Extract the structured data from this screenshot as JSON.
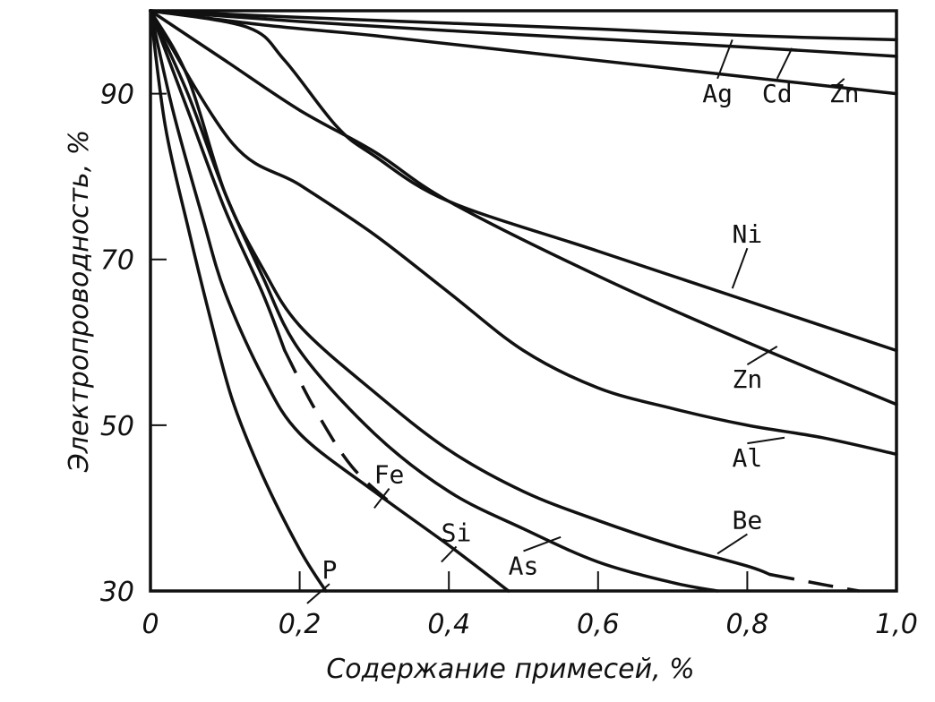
{
  "chart_data": {
    "type": "line",
    "xlabel": "Содержание примесей, %",
    "ylabel": "Электропроводность, %",
    "xlim": [
      0,
      1.0
    ],
    "ylim": [
      30,
      100
    ],
    "x_ticks": [
      0,
      0.2,
      0.4,
      0.6,
      0.8,
      1.0
    ],
    "x_tick_labels": [
      "0",
      "0,2",
      "0,4",
      "0,6",
      "0,8",
      "1,0"
    ],
    "y_ticks": [
      30,
      50,
      70,
      90
    ],
    "y_tick_labels": [
      "30",
      "50",
      "70",
      "90"
    ],
    "grid": false,
    "legend": "none",
    "series": [
      {
        "name": "Ag",
        "label_at": [
          0.76,
          89.0
        ],
        "leader_to": [
          0.78,
          96.5
        ],
        "points": [
          [
            0,
            100
          ],
          [
            0.2,
            99.2
          ],
          [
            0.4,
            98.5
          ],
          [
            0.6,
            97.8
          ],
          [
            0.8,
            97.0
          ],
          [
            1.0,
            96.5
          ]
        ]
      },
      {
        "name": "Cd",
        "label_at": [
          0.84,
          89.0
        ],
        "leader_to": [
          0.86,
          95.5
        ],
        "points": [
          [
            0,
            100
          ],
          [
            0.2,
            98.7
          ],
          [
            0.4,
            97.6
          ],
          [
            0.6,
            96.6
          ],
          [
            0.8,
            95.6
          ],
          [
            1.0,
            94.5
          ]
        ]
      },
      {
        "name": "Zn",
        "label_at": [
          0.93,
          89.0
        ],
        "leader_to": [
          0.92,
          91.0
        ],
        "points": [
          [
            0,
            100
          ],
          [
            0.15,
            98.3
          ],
          [
            0.3,
            97.0
          ],
          [
            0.5,
            95.0
          ],
          [
            0.7,
            93.0
          ],
          [
            0.85,
            91.5
          ],
          [
            1.0,
            90.0
          ]
        ]
      },
      {
        "name": "Ni",
        "label_at": [
          0.8,
          72.0
        ],
        "leader_to": [
          0.78,
          66.5
        ],
        "points": [
          [
            0,
            100
          ],
          [
            0.13,
            98.0
          ],
          [
            0.18,
            94.0
          ],
          [
            0.25,
            86.0
          ],
          [
            0.3,
            82.5
          ],
          [
            0.4,
            77.0
          ],
          [
            0.6,
            71.0
          ],
          [
            0.8,
            65.0
          ],
          [
            1.0,
            59.0
          ]
        ]
      },
      {
        "name": "Zn",
        "label_at": [
          0.8,
          54.5
        ],
        "leader_to": [
          0.84,
          59.5
        ],
        "points": [
          [
            0,
            100
          ],
          [
            0.1,
            94.0
          ],
          [
            0.2,
            88.0
          ],
          [
            0.3,
            83.0
          ],
          [
            0.4,
            77.0
          ],
          [
            0.6,
            68.0
          ],
          [
            0.8,
            60.0
          ],
          [
            1.0,
            52.5
          ]
        ]
      },
      {
        "name": "Al",
        "label_at": [
          0.8,
          45.0
        ],
        "leader_to": [
          0.85,
          48.5
        ],
        "points": [
          [
            0,
            100
          ],
          [
            0.11,
            84.0
          ],
          [
            0.2,
            79.0
          ],
          [
            0.3,
            73.0
          ],
          [
            0.4,
            66.0
          ],
          [
            0.5,
            59.0
          ],
          [
            0.6,
            54.5
          ],
          [
            0.7,
            52.0
          ],
          [
            0.8,
            50.0
          ],
          [
            0.9,
            48.5
          ],
          [
            1.0,
            46.5
          ]
        ]
      },
      {
        "name": "Be",
        "label_at": [
          0.8,
          37.5
        ],
        "leader_to": [
          0.76,
          34.5
        ],
        "points": [
          [
            0,
            100
          ],
          [
            0.05,
            92.0
          ],
          [
            0.1,
            78.0
          ],
          [
            0.15,
            69.0
          ],
          [
            0.2,
            62.0
          ],
          [
            0.3,
            54.0
          ],
          [
            0.4,
            47.0
          ],
          [
            0.5,
            42.0
          ],
          [
            0.6,
            38.5
          ],
          [
            0.7,
            35.5
          ],
          [
            0.8,
            33.0
          ],
          [
            0.83,
            32.0
          ]
        ],
        "dashed_points": [
          [
            0.83,
            32.0
          ],
          [
            0.9,
            30.8
          ],
          [
            0.95,
            30.0
          ]
        ]
      },
      {
        "name": "As",
        "label_at": [
          0.5,
          32.0
        ],
        "leader_to": [
          0.55,
          36.5
        ],
        "points": [
          [
            0,
            100
          ],
          [
            0.05,
            90.0
          ],
          [
            0.1,
            78.0
          ],
          [
            0.15,
            68.0
          ],
          [
            0.2,
            59.0
          ],
          [
            0.3,
            49.0
          ],
          [
            0.4,
            42.0
          ],
          [
            0.5,
            37.5
          ],
          [
            0.6,
            33.5
          ],
          [
            0.7,
            31.0
          ],
          [
            0.76,
            30.0
          ]
        ]
      },
      {
        "name": "Fe",
        "label_at": [
          0.32,
          43.0
        ],
        "leader_to": [
          0.3,
          40.0
        ],
        "points": [
          [
            0,
            100
          ],
          [
            0.05,
            88.0
          ],
          [
            0.1,
            76.0
          ],
          [
            0.15,
            66.0
          ],
          [
            0.18,
            59.0
          ]
        ],
        "dashed_points": [
          [
            0.18,
            59.0
          ],
          [
            0.22,
            52.0
          ],
          [
            0.27,
            45.0
          ],
          [
            0.33,
            40.0
          ]
        ]
      },
      {
        "name": "Si",
        "label_at": [
          0.41,
          36.0
        ],
        "leader_to": [
          0.39,
          33.5
        ],
        "points": [
          [
            0,
            100
          ],
          [
            0.03,
            88.0
          ],
          [
            0.07,
            75.0
          ],
          [
            0.1,
            66.0
          ],
          [
            0.15,
            56.0
          ],
          [
            0.2,
            49.0
          ],
          [
            0.3,
            42.0
          ],
          [
            0.4,
            35.5
          ],
          [
            0.48,
            30.0
          ]
        ]
      },
      {
        "name": "P",
        "label_at": [
          0.24,
          31.5
        ],
        "leader_to": [
          0.21,
          28.5
        ],
        "points": [
          [
            0,
            100
          ],
          [
            0.02,
            86.0
          ],
          [
            0.05,
            74.0
          ],
          [
            0.08,
            63.0
          ],
          [
            0.11,
            53.0
          ],
          [
            0.15,
            44.0
          ],
          [
            0.2,
            35.0
          ],
          [
            0.235,
            30.0
          ]
        ]
      }
    ]
  }
}
